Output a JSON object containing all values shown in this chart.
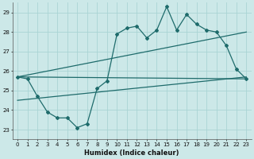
{
  "xlabel": "Humidex (Indice chaleur)",
  "bg_color": "#cce8e8",
  "grid_color": "#aad4d4",
  "line_color": "#1e6b6b",
  "xlim": [
    -0.5,
    23.5
  ],
  "ylim": [
    22.5,
    29.5
  ],
  "yticks": [
    23,
    24,
    25,
    26,
    27,
    28,
    29
  ],
  "xticks": [
    0,
    1,
    2,
    3,
    4,
    5,
    6,
    7,
    8,
    9,
    10,
    11,
    12,
    13,
    14,
    15,
    16,
    17,
    18,
    19,
    20,
    21,
    22,
    23
  ],
  "series1_x": [
    0,
    1,
    2,
    3,
    4,
    5,
    6,
    7,
    8,
    9,
    10,
    11,
    12,
    13,
    14,
    15,
    16,
    17,
    18,
    19,
    20,
    21,
    22,
    23
  ],
  "series1_y": [
    25.7,
    25.6,
    24.7,
    23.9,
    23.6,
    23.6,
    23.1,
    23.3,
    25.1,
    25.5,
    27.9,
    28.2,
    28.3,
    27.7,
    28.1,
    29.3,
    28.1,
    28.9,
    28.4,
    28.1,
    28.0,
    27.3,
    26.1,
    25.6
  ],
  "trend1_x": [
    0,
    23
  ],
  "trend1_y": [
    25.7,
    28.0
  ],
  "trend2_x": [
    0,
    23
  ],
  "trend2_y": [
    25.7,
    25.6
  ],
  "trend3_x": [
    0,
    23
  ],
  "trend3_y": [
    24.5,
    25.7
  ]
}
